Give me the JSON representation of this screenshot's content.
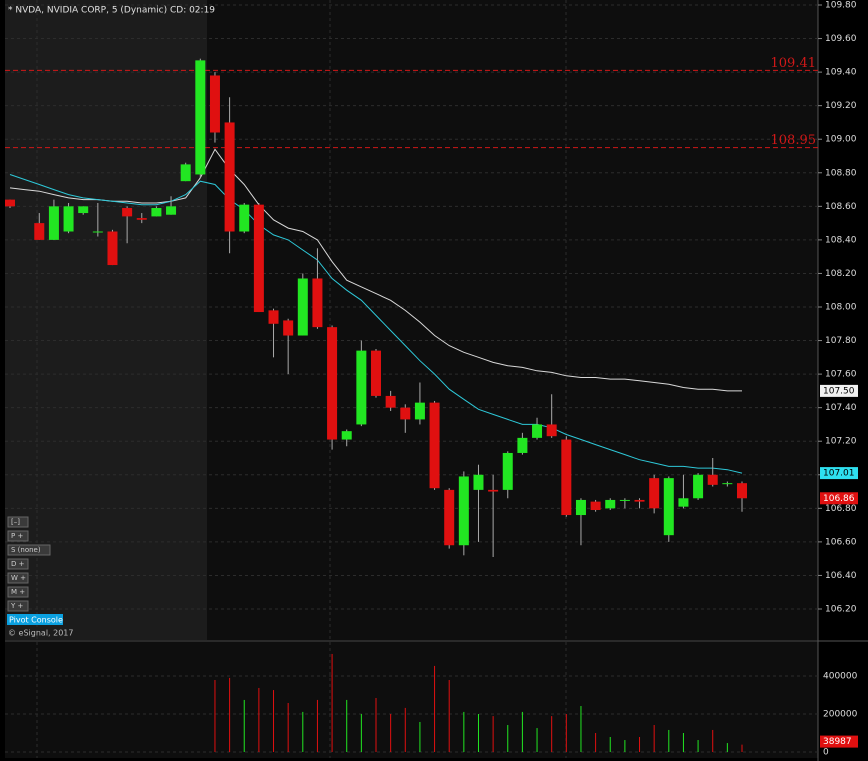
{
  "chart_data": {
    "type": "candlestick",
    "title": "* NVDA, NVIDIA CORP, 5 (Dynamic) CD: 02:19",
    "categories": [
      null,
      null,
      null,
      null,
      null,
      null,
      null,
      null,
      null,
      null,
      null,
      null,
      null,
      null,
      null,
      null,
      null,
      null,
      null,
      null,
      null,
      null,
      null,
      null,
      null,
      null,
      null,
      null,
      null,
      null,
      null,
      null,
      null,
      null,
      null,
      null,
      null,
      null,
      null,
      null,
      null,
      null,
      null,
      null,
      null,
      null,
      null,
      null,
      null,
      null,
      null
    ],
    "open": [
      108.64,
      null,
      108.5,
      108.4,
      108.45,
      108.56,
      108.45,
      108.45,
      108.59,
      108.53,
      108.54,
      108.55,
      108.75,
      108.79,
      109.38,
      109.1,
      108.45,
      108.61,
      107.98,
      107.92,
      107.83,
      108.17,
      107.88,
      107.21,
      107.3,
      107.74,
      107.47,
      107.4,
      107.33,
      107.43,
      106.91,
      106.58,
      106.91,
      106.91,
      106.91,
      107.13,
      107.22,
      107.3,
      107.21,
      106.76,
      106.84,
      106.8,
      106.85,
      106.85,
      106.98,
      106.64,
      106.81,
      106.86,
      107.0,
      106.95,
      106.95
    ],
    "high": [
      108.64,
      null,
      108.56,
      108.64,
      108.62,
      108.6,
      108.62,
      108.46,
      108.6,
      108.56,
      108.6,
      108.66,
      108.86,
      109.48,
      109.4,
      109.25,
      108.62,
      108.62,
      107.99,
      107.93,
      108.2,
      108.35,
      107.89,
      107.27,
      107.8,
      107.75,
      107.5,
      107.42,
      107.55,
      107.44,
      106.92,
      107.02,
      107.06,
      107.0,
      107.14,
      107.25,
      107.34,
      107.48,
      107.23,
      106.86,
      106.85,
      106.86,
      106.86,
      106.86,
      107.0,
      106.99,
      107.0,
      107.01,
      107.1,
      106.96,
      106.96
    ],
    "low": [
      108.59,
      null,
      108.4,
      108.4,
      108.44,
      108.55,
      108.42,
      108.25,
      108.38,
      108.5,
      108.54,
      108.55,
      108.75,
      108.77,
      108.98,
      108.32,
      108.44,
      107.97,
      107.7,
      107.6,
      107.83,
      107.87,
      107.15,
      107.17,
      107.29,
      107.46,
      107.38,
      107.25,
      107.3,
      106.91,
      106.56,
      106.52,
      106.6,
      106.51,
      106.86,
      107.12,
      107.21,
      107.22,
      106.75,
      106.58,
      106.78,
      106.79,
      106.8,
      106.8,
      106.77,
      106.6,
      106.8,
      106.85,
      106.93,
      106.93,
      106.78
    ],
    "close": [
      108.6,
      null,
      108.4,
      108.6,
      108.6,
      108.6,
      108.45,
      108.25,
      108.54,
      108.52,
      108.59,
      108.6,
      108.85,
      109.47,
      109.04,
      108.45,
      108.61,
      107.97,
      107.9,
      107.83,
      108.17,
      107.88,
      107.21,
      107.26,
      107.74,
      107.47,
      107.4,
      107.33,
      107.43,
      106.92,
      106.58,
      106.99,
      107.0,
      106.9,
      107.13,
      107.22,
      107.3,
      107.23,
      106.76,
      106.85,
      106.79,
      106.85,
      106.85,
      106.84,
      106.8,
      106.98,
      106.86,
      107.0,
      106.94,
      106.95,
      106.86
    ],
    "up_color": "#22e622",
    "down_color": "#e01010",
    "ylim": [
      106.2,
      109.8
    ],
    "yticks": [
      {
        "value": 109.8,
        "label": "109.80"
      },
      {
        "value": 109.6,
        "label": "109.60"
      },
      {
        "value": 109.4,
        "label": "109.40"
      },
      {
        "value": 109.2,
        "label": "109.20"
      },
      {
        "value": 109.0,
        "label": "109.00"
      },
      {
        "value": 108.8,
        "label": "108.80"
      },
      {
        "value": 108.6,
        "label": "108.60"
      },
      {
        "value": 108.4,
        "label": "108.40"
      },
      {
        "value": 108.2,
        "label": "108.20"
      },
      {
        "value": 108.0,
        "label": "108.00"
      },
      {
        "value": 107.8,
        "label": "107.80"
      },
      {
        "value": 107.6,
        "label": "107.60"
      },
      {
        "value": 107.4,
        "label": "107.40"
      },
      {
        "value": 107.2,
        "label": "107.20"
      },
      {
        "value": 107.0,
        "label": "107.00"
      },
      {
        "value": 106.8,
        "label": "106.80"
      },
      {
        "value": 106.6,
        "label": "106.60"
      },
      {
        "value": 106.4,
        "label": "106.40"
      },
      {
        "value": 106.2,
        "label": "106.20"
      }
    ],
    "grid": true,
    "lines": [
      {
        "color": "#d8d8d8",
        "last_label": "107.50",
        "values": [
          108.71,
          108.7,
          108.69,
          108.67,
          108.65,
          108.64,
          108.64,
          108.63,
          108.63,
          108.62,
          108.62,
          108.63,
          108.65,
          108.77,
          108.94,
          108.82,
          108.73,
          108.61,
          108.52,
          108.47,
          108.45,
          108.4,
          108.27,
          108.16,
          108.12,
          108.08,
          108.04,
          107.98,
          107.91,
          107.83,
          107.77,
          107.73,
          107.7,
          107.67,
          107.65,
          107.64,
          107.62,
          107.61,
          107.59,
          107.58,
          107.58,
          107.57,
          107.57,
          107.56,
          107.55,
          107.54,
          107.52,
          107.51,
          107.51,
          107.5,
          107.5
        ]
      },
      {
        "color": "#2ec8d8",
        "values": [
          108.79,
          108.76,
          108.73,
          108.7,
          108.67,
          108.65,
          108.64,
          108.63,
          108.62,
          108.61,
          108.61,
          108.63,
          108.67,
          108.75,
          108.73,
          108.64,
          108.58,
          108.49,
          108.43,
          108.4,
          108.34,
          108.28,
          108.17,
          108.1,
          108.04,
          107.95,
          107.86,
          107.77,
          107.68,
          107.6,
          107.51,
          107.45,
          107.39,
          107.36,
          107.33,
          107.3,
          107.3,
          107.28,
          107.24,
          107.21,
          107.18,
          107.15,
          107.12,
          107.09,
          107.07,
          107.05,
          107.05,
          107.04,
          107.04,
          107.03,
          107.01
        ]
      }
    ],
    "hlines": [
      {
        "value": 109.41,
        "color": "#d01818"
      },
      {
        "value": 108.95,
        "color": "#d01818"
      }
    ],
    "volume": {
      "values": [
        null,
        null,
        null,
        null,
        null,
        null,
        null,
        null,
        null,
        null,
        null,
        null,
        null,
        null,
        379000,
        390000,
        274000,
        337000,
        326000,
        258000,
        211000,
        274000,
        516000,
        274000,
        200000,
        284000,
        200000,
        232000,
        158000,
        453000,
        379000,
        211000,
        200000,
        189000,
        142000,
        211000,
        126000,
        189000,
        200000,
        242000,
        100000,
        79000,
        63000,
        79000,
        142000,
        116000,
        100000,
        63000,
        116000,
        47000,
        38987
      ],
      "ylim": [
        0,
        600000
      ],
      "yticks": [
        400000,
        200000,
        0
      ]
    },
    "buttons": [
      "[–]",
      "P +",
      "S (none)",
      "D +",
      "W +",
      "M +",
      "Y +"
    ],
    "console": "Pivot Console",
    "copyright": "© eSignal, 2017"
  }
}
